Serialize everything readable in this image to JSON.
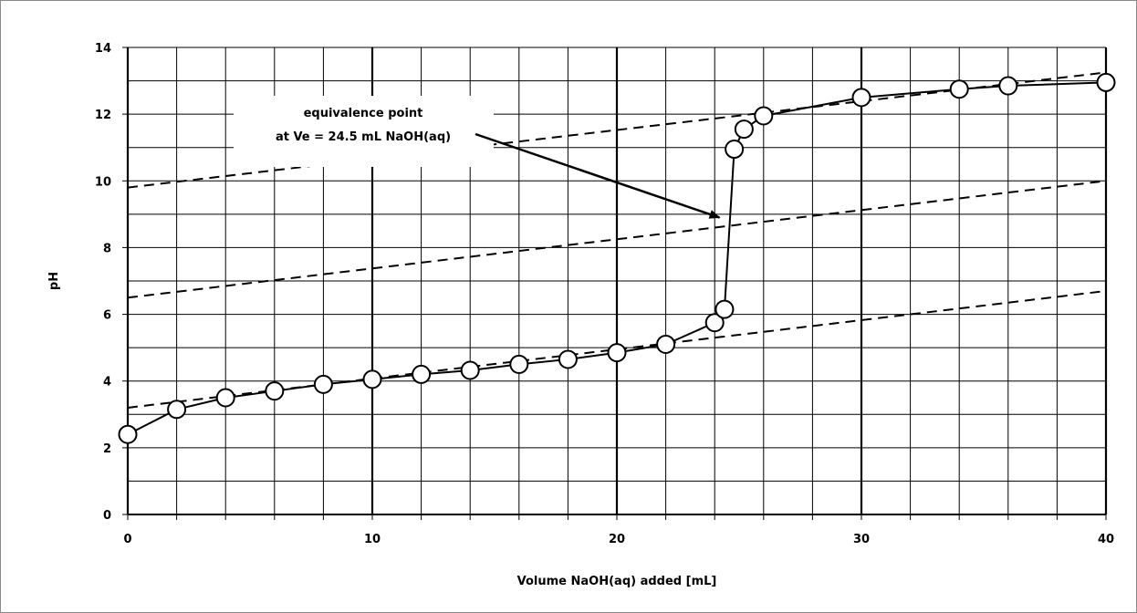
{
  "chart_data": {
    "type": "scatter",
    "xlabel": "Volume NaOH(aq) added [mL]",
    "ylabel": "pH",
    "xlim": [
      0,
      40
    ],
    "ylim": [
      0,
      14
    ],
    "x_ticks": [
      0,
      10,
      20,
      30,
      40
    ],
    "y_ticks": [
      0,
      2,
      4,
      6,
      8,
      10,
      12,
      14
    ],
    "grid": true,
    "series": [
      {
        "style": "line-with-open-circle-markers",
        "color": "#000000",
        "x": [
          0,
          2,
          4,
          6,
          8,
          10,
          12,
          14,
          16,
          18,
          20,
          22,
          24,
          24.4,
          24.8,
          25.2,
          26,
          30,
          34,
          36,
          40
        ],
        "y": [
          2.4,
          3.15,
          3.5,
          3.7,
          3.9,
          4.05,
          4.2,
          4.32,
          4.5,
          4.65,
          4.85,
          5.1,
          5.75,
          6.15,
          10.95,
          11.55,
          11.95,
          12.5,
          12.75,
          12.85,
          12.95
        ]
      }
    ],
    "tangent_lines": [
      {
        "style": "dashed",
        "x": [
          0,
          40
        ],
        "y": [
          3.2,
          6.7
        ]
      },
      {
        "style": "dashed",
        "x": [
          0,
          40
        ],
        "y": [
          6.5,
          10.0
        ]
      },
      {
        "style": "dashed",
        "x": [
          0,
          40
        ],
        "y": [
          9.8,
          13.25
        ]
      }
    ],
    "annotation": {
      "lines": [
        "equivalence point",
        "at Ve = 24.5 mL NaOH(aq)"
      ],
      "arrow_to": {
        "x": 24.2,
        "y": 8.9
      }
    }
  }
}
